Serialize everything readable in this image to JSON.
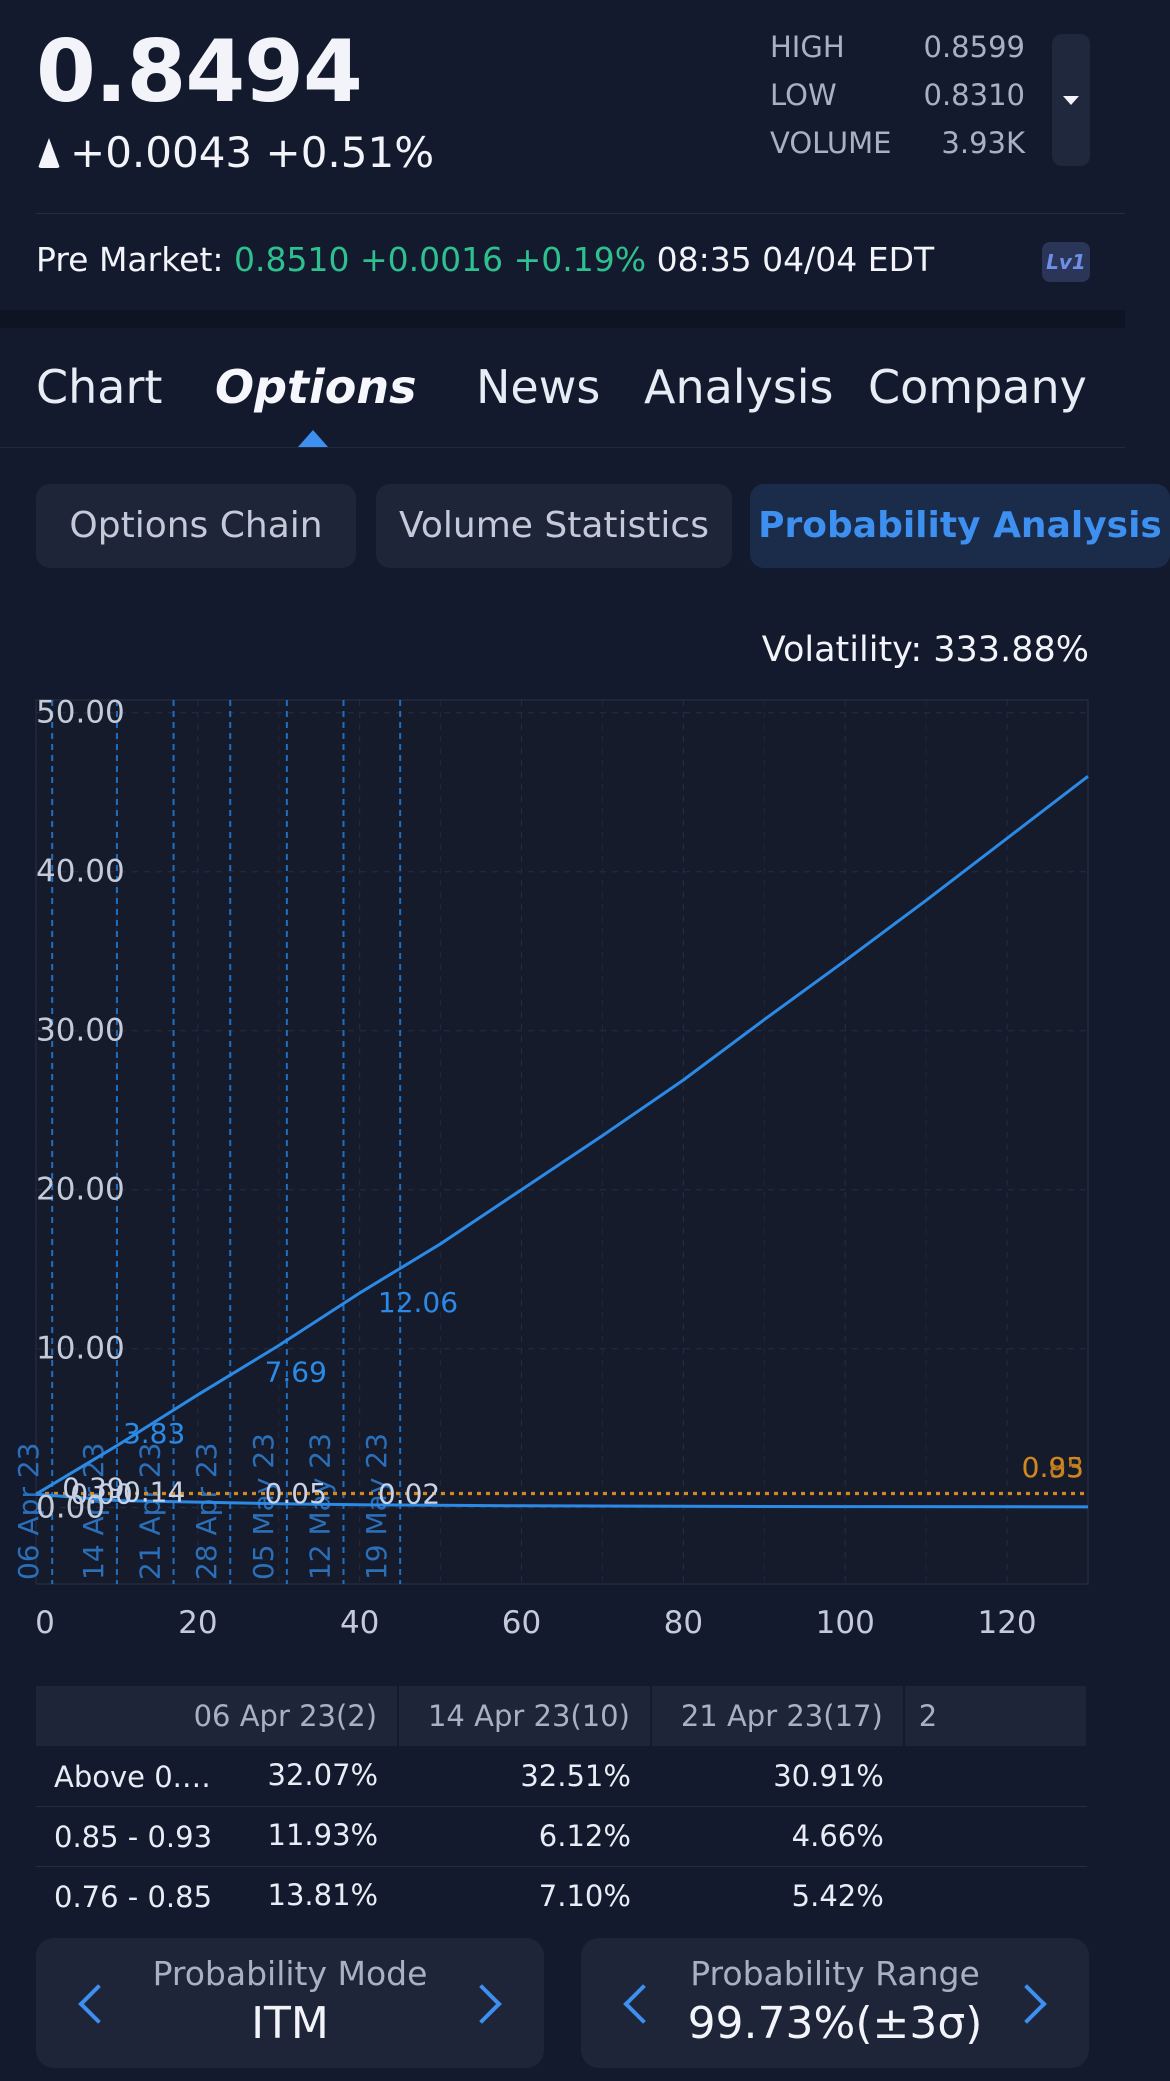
{
  "quote": {
    "price": "0.8494",
    "change": "+0.0043 +0.51%",
    "stats": [
      {
        "label": "HIGH",
        "value": "0.8599"
      },
      {
        "label": "LOW",
        "value": "0.8310"
      },
      {
        "label": "VOLUME",
        "value": "3.93K"
      }
    ]
  },
  "premarket": {
    "label": "Pre Market:",
    "price": "0.8510",
    "change": "+0.0016 +0.19%",
    "time": "08:35 04/04 EDT",
    "badge": "Lv1"
  },
  "tabs": [
    "Chart",
    "Options",
    "News",
    "Analysis",
    "Company"
  ],
  "active_tab": "Options",
  "subtabs": [
    "Options Chain",
    "Volume Statistics",
    "Probability Analysis"
  ],
  "active_subtab": "Probability Analysis",
  "volatility": "Volatility: 333.88%",
  "chart_data": {
    "type": "line",
    "x_ticks": [
      "0",
      "20",
      "40",
      "60",
      "80",
      "100",
      "120"
    ],
    "y_ticks": [
      "0.00",
      "10.00",
      "20.00",
      "30.00",
      "40.00",
      "50.00"
    ],
    "xlim": [
      0,
      130
    ],
    "ylim": [
      -4.8,
      50.8
    ],
    "grid": true,
    "series": [
      {
        "values": [
          [
            0,
            0.85
          ],
          [
            10,
            3.9
          ],
          [
            20,
            7.1
          ],
          [
            30,
            10.2
          ],
          [
            40,
            13.5
          ],
          [
            50,
            16.6
          ],
          [
            60,
            20.0
          ],
          [
            70,
            23.4
          ],
          [
            80,
            26.9
          ],
          [
            90,
            30.7
          ],
          [
            100,
            34.4
          ],
          [
            110,
            38.2
          ],
          [
            120,
            42.1
          ],
          [
            130,
            46.0
          ]
        ],
        "color": "#2b8ae6"
      },
      {
        "values": [
          [
            0,
            0.85
          ],
          [
            10,
            0.45
          ],
          [
            20,
            0.35
          ],
          [
            30,
            0.25
          ],
          [
            40,
            0.18
          ],
          [
            60,
            0.12
          ],
          [
            80,
            0.09
          ],
          [
            100,
            0.07
          ],
          [
            130,
            0.05
          ]
        ],
        "color": "#2b8ae6"
      }
    ],
    "expiry_lines": [
      {
        "x": 2,
        "label": "06 Apr 23"
      },
      {
        "x": 10,
        "label": "14 Apr 23"
      },
      {
        "x": 17,
        "label": "21 Apr 23"
      },
      {
        "x": 24,
        "label": "28 Apr 23"
      },
      {
        "x": 31,
        "label": "05 May 23"
      },
      {
        "x": 38,
        "label": "12 May 23"
      },
      {
        "x": 45,
        "label": "19 May 23"
      }
    ],
    "reference_lines": [
      {
        "y": 0.93,
        "label": "0.93",
        "color": "#d4891e"
      },
      {
        "y": 0.85,
        "label": "0.85",
        "color": "#d4891e"
      }
    ],
    "annotations": [
      {
        "x": 3,
        "y": 0.39,
        "text": "0.39",
        "color": "#c9d3e6"
      },
      {
        "x": 4,
        "y": 0.0,
        "text": "0.00",
        "color": "#c9d3e6"
      },
      {
        "x": 10.5,
        "y": 3.83,
        "text": "3.83",
        "color": "#2b8ae6"
      },
      {
        "x": 10.5,
        "y": 0.14,
        "text": "0.14",
        "color": "#c9d3e6"
      },
      {
        "x": 28,
        "y": 7.69,
        "text": "7.69",
        "color": "#2b8ae6"
      },
      {
        "x": 28,
        "y": 0.05,
        "text": "0.05",
        "color": "#c9d3e6"
      },
      {
        "x": 42,
        "y": 12.06,
        "text": "12.06",
        "color": "#2b8ae6"
      },
      {
        "x": 42,
        "y": 0.02,
        "text": "0.02",
        "color": "#c9d3e6"
      }
    ]
  },
  "table": {
    "headers": [
      "",
      "06 Apr 23(2)",
      "14 Apr 23(10)",
      "21 Apr 23(17)",
      "2"
    ],
    "rows": [
      {
        "label": "Above 0.…",
        "values": [
          "32.07%",
          "32.51%",
          "30.91%",
          ""
        ]
      },
      {
        "label": "0.85 - 0.93",
        "values": [
          "11.93%",
          "6.12%",
          "4.66%",
          ""
        ]
      },
      {
        "label": "0.76 - 0.85",
        "values": [
          "13.81%",
          "7.10%",
          "5.42%",
          ""
        ]
      }
    ]
  },
  "bottom": {
    "mode_title": "Probability Mode",
    "mode_value": "ITM",
    "range_title": "Probability Range",
    "range_value": "99.73%(±3σ)"
  },
  "colors": {
    "accent": "#3d8ff0",
    "up": "#2ec08f",
    "orange": "#d4891e",
    "background": "#141a2e"
  }
}
